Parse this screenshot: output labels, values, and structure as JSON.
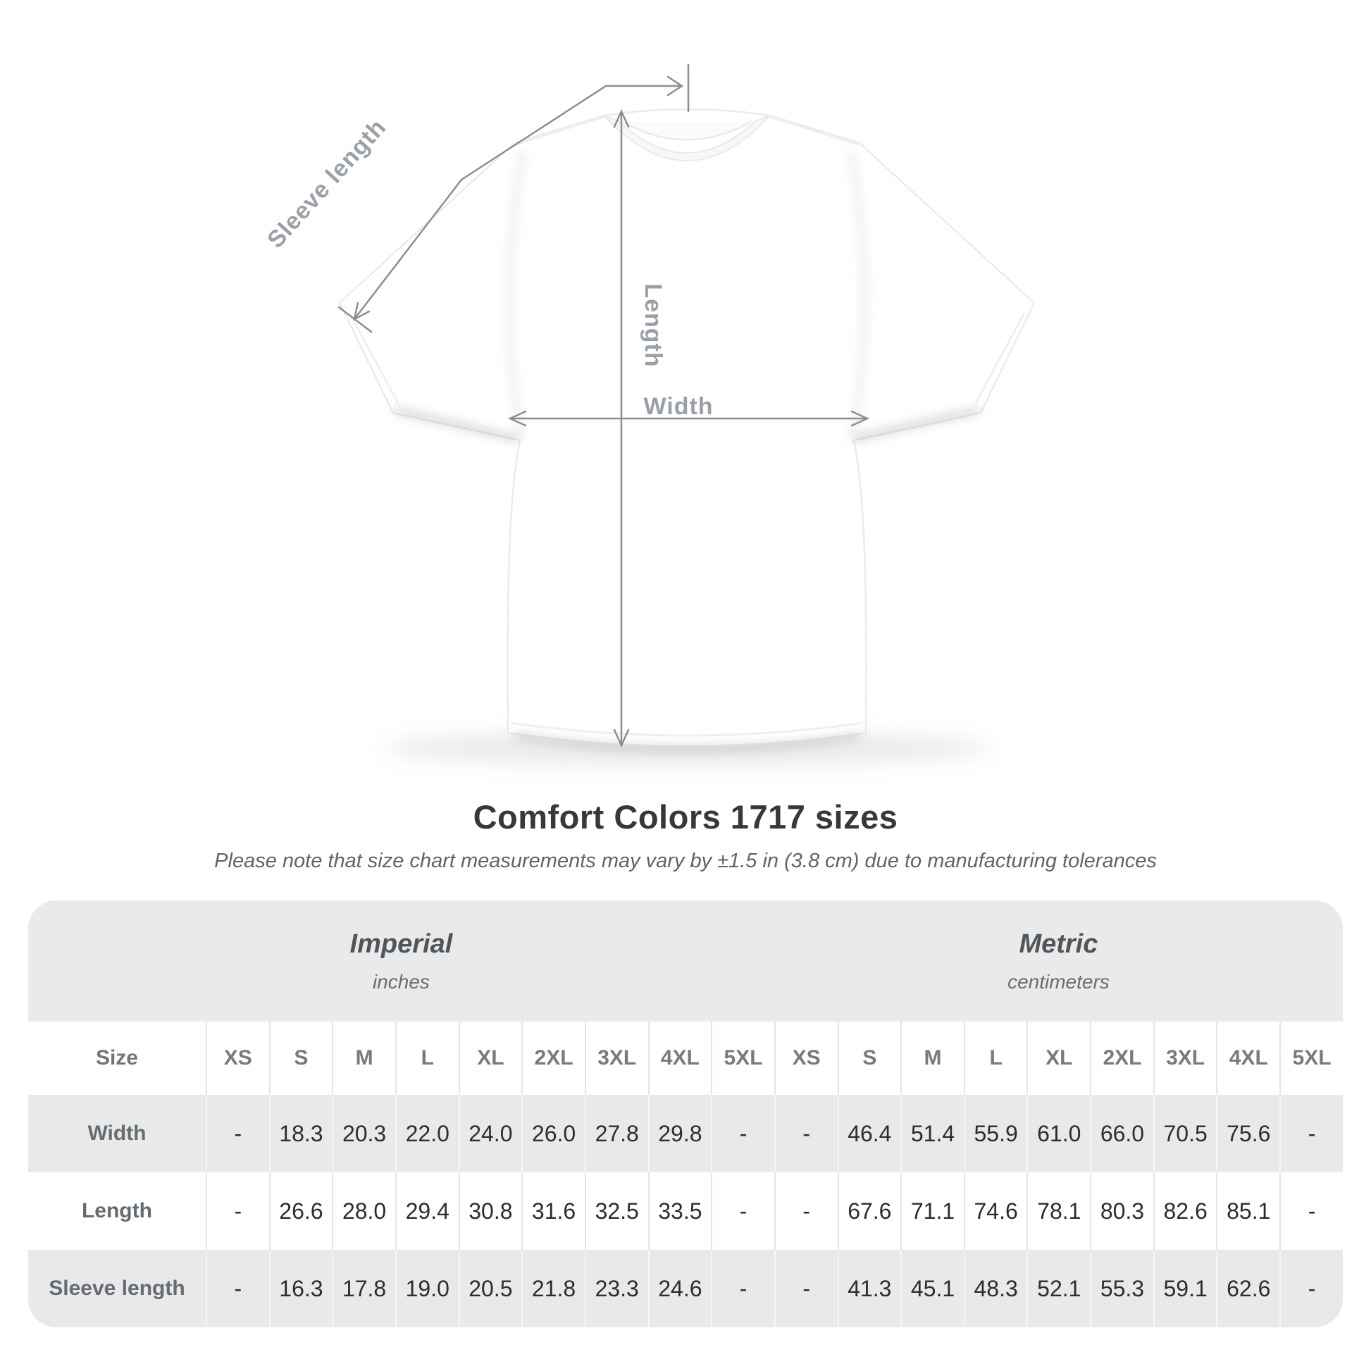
{
  "diagram": {
    "sleeve_length_label": "Sleeve length",
    "length_label": "Length",
    "width_label": "Width"
  },
  "title": "Comfort Colors 1717 sizes",
  "subtitle": "Please note that size chart measurements may vary by ±1.5 in (3.8 cm) due to manufacturing tolerances",
  "table": {
    "size_header": "Size",
    "groups": [
      {
        "label": "Imperial",
        "unit": "inches"
      },
      {
        "label": "Metric",
        "unit": "centimeters"
      }
    ],
    "sizes": [
      "XS",
      "S",
      "M",
      "L",
      "XL",
      "2XL",
      "3XL",
      "4XL",
      "5XL"
    ],
    "rows": [
      {
        "label": "Width",
        "imperial": [
          "-",
          "18.3",
          "20.3",
          "22.0",
          "24.0",
          "26.0",
          "27.8",
          "29.8",
          "-"
        ],
        "metric": [
          "-",
          "46.4",
          "51.4",
          "55.9",
          "61.0",
          "66.0",
          "70.5",
          "75.6",
          "-"
        ]
      },
      {
        "label": "Length",
        "imperial": [
          "-",
          "26.6",
          "28.0",
          "29.4",
          "30.8",
          "31.6",
          "32.5",
          "33.5",
          "-"
        ],
        "metric": [
          "-",
          "67.6",
          "71.1",
          "74.6",
          "78.1",
          "80.3",
          "82.6",
          "85.1",
          "-"
        ]
      },
      {
        "label": "Sleeve length",
        "imperial": [
          "-",
          "16.3",
          "17.8",
          "19.0",
          "20.5",
          "21.8",
          "23.3",
          "24.6",
          "-"
        ],
        "metric": [
          "-",
          "41.3",
          "45.1",
          "48.3",
          "52.1",
          "55.3",
          "59.1",
          "62.6",
          "-"
        ]
      }
    ]
  },
  "colors": {
    "band_gray": "#eaeaea",
    "shade_row_gray": "#e9e9e9",
    "divider": "#e5e5e5",
    "header_text": "#747b81",
    "value_text": "#2d2d2d",
    "title_text": "#383838",
    "arrow_gray": "#8e8e8e",
    "diagram_label_gray": "#9aa0a5"
  }
}
